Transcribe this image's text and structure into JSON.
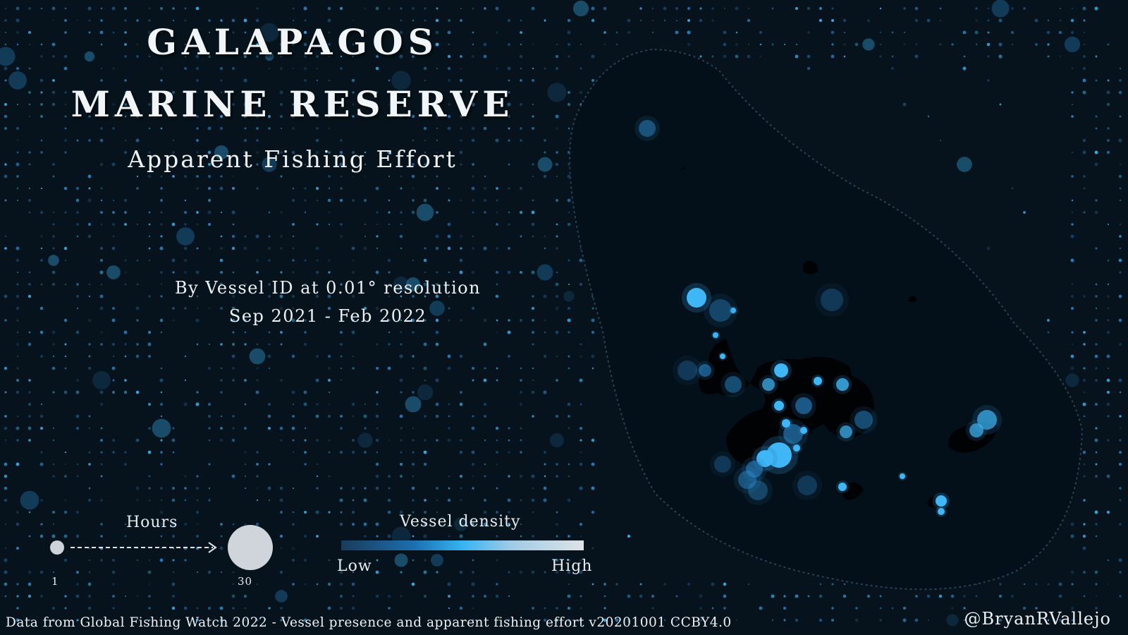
{
  "title": {
    "line1": "GALAPAGOS",
    "line2": "MARINE RESERVE",
    "subtitle": "Apparent Fishing Effort"
  },
  "description": {
    "line1": "By Vessel ID at 0.01° resolution",
    "line2": "Sep 2021 - Feb 2022"
  },
  "legend": {
    "hours": {
      "title": "Hours",
      "min_label": "1",
      "max_label": "30",
      "min_value": 1,
      "max_value": 30
    },
    "density": {
      "title": "Vessel density",
      "low_label": "Low",
      "high_label": "High",
      "gradient_colors": [
        "#193b5a",
        "#1c6fb0",
        "#36b4f2",
        "#9fcbe6",
        "#dfe3e6"
      ]
    }
  },
  "footer": {
    "source": "Data from Global Fishing Watch 2022 - Vessel presence and apparent fishing effort v20201001 CCBY4.0",
    "handle": "@BryanRVallejo"
  },
  "colors": {
    "background": "#06131c",
    "ocean_inside_reserve": "#041019",
    "land": "#010204",
    "effort_low": "#1d4f78",
    "effort_mid": "#2a86c8",
    "effort_high": "#3fb6f5",
    "reserve_boundary": "#284257"
  }
}
